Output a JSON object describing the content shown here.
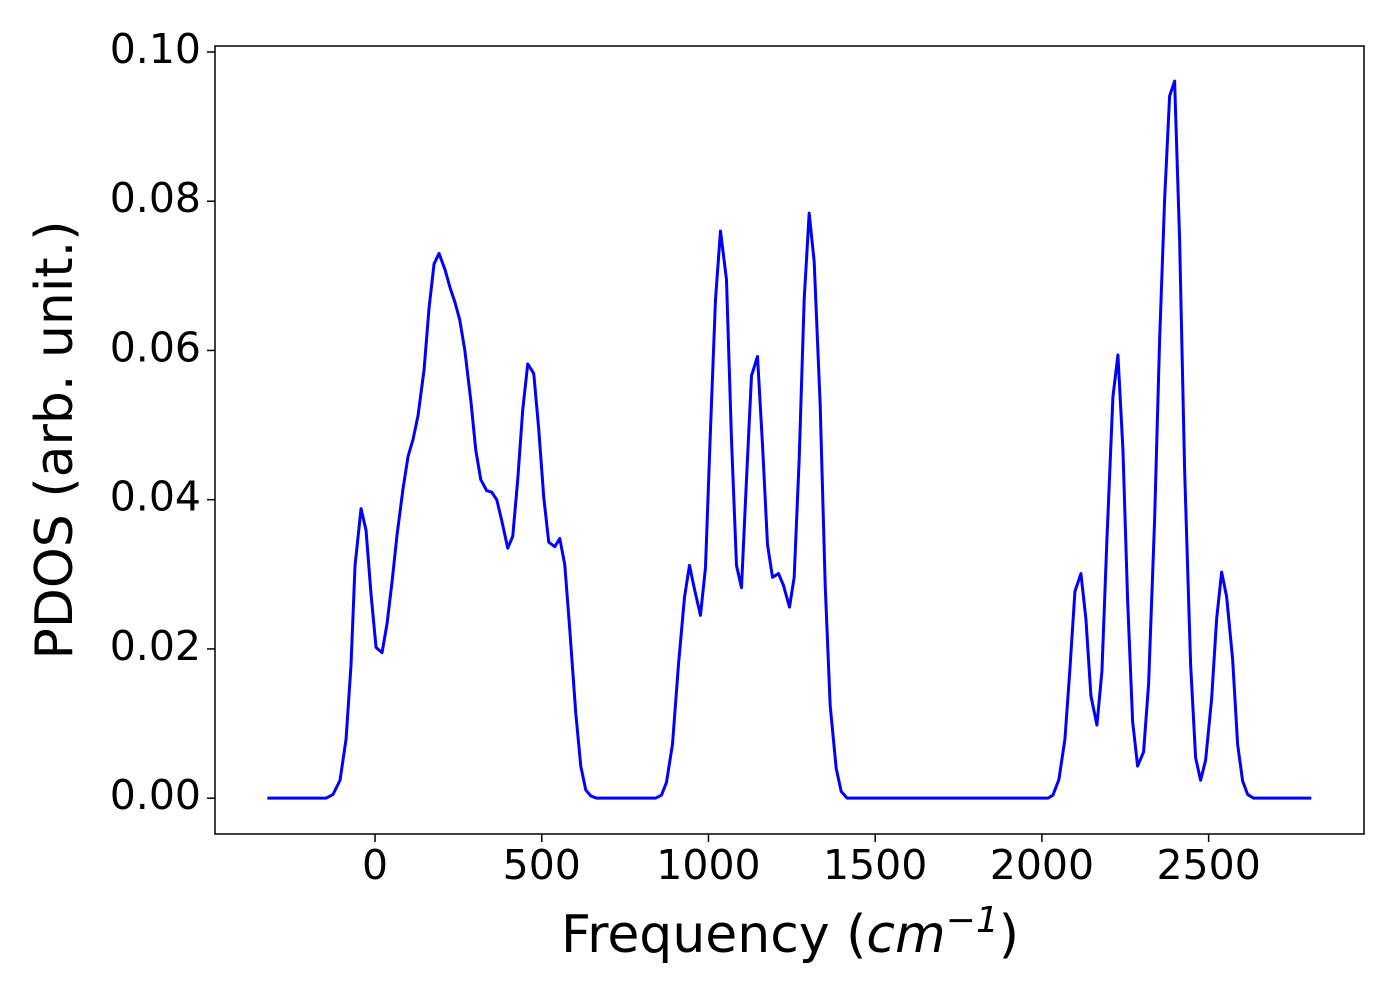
{
  "chart_data": {
    "type": "line",
    "ylabel": "PDOS (arb. unit.)",
    "xlabel": [
      "Frequency (",
      "cm",
      "−1",
      ")"
    ],
    "color": "#0000ff",
    "x": [
      -323,
      -147,
      -126,
      -105,
      -87,
      -72,
      -60,
      -42,
      -27,
      -12,
      3,
      21,
      36,
      51,
      66,
      84,
      99,
      114,
      129,
      147,
      162,
      177,
      192,
      210,
      225,
      240,
      254,
      269,
      287,
      302,
      317,
      335,
      350,
      365,
      380,
      398,
      413,
      428,
      443,
      458,
      476,
      491,
      506,
      521,
      539,
      554,
      569,
      584,
      602,
      617,
      632,
      647,
      665,
      841,
      859,
      874,
      892,
      910,
      928,
      943,
      958,
      976,
      991,
      1006,
      1021,
      1036,
      1054,
      1069,
      1084,
      1099,
      1114,
      1129,
      1147,
      1162,
      1177,
      1192,
      1210,
      1225,
      1243,
      1257,
      1272,
      1287,
      1302,
      1317,
      1335,
      1350,
      1365,
      1383,
      1398,
      1416,
      2018,
      2033,
      2051,
      2069,
      2084,
      2099,
      2117,
      2132,
      2147,
      2165,
      2180,
      2195,
      2213,
      2228,
      2243,
      2257,
      2272,
      2287,
      2305,
      2320,
      2338,
      2353,
      2368,
      2383,
      2398,
      2413,
      2428,
      2446,
      2461,
      2476,
      2491,
      2509,
      2524,
      2539,
      2554,
      2572,
      2587,
      2602,
      2617,
      2635,
      2808
    ],
    "values": [
      0,
      0,
      0.0005,
      0.0024,
      0.0079,
      0.0179,
      0.0312,
      0.0388,
      0.0359,
      0.0273,
      0.0202,
      0.0195,
      0.0234,
      0.029,
      0.0353,
      0.0415,
      0.0458,
      0.0481,
      0.0513,
      0.0574,
      0.0657,
      0.0716,
      0.073,
      0.0708,
      0.0684,
      0.0664,
      0.0641,
      0.0601,
      0.0534,
      0.0467,
      0.0427,
      0.0412,
      0.041,
      0.04,
      0.0372,
      0.0335,
      0.0351,
      0.0427,
      0.0521,
      0.0582,
      0.0569,
      0.0494,
      0.0403,
      0.0343,
      0.0337,
      0.0348,
      0.0313,
      0.0226,
      0.0114,
      0.0043,
      0.0011,
      0.0003,
      0,
      0,
      0.0004,
      0.0021,
      0.0072,
      0.0179,
      0.0269,
      0.0312,
      0.028,
      0.0245,
      0.0309,
      0.0494,
      0.0668,
      0.076,
      0.0695,
      0.0481,
      0.0312,
      0.0282,
      0.0427,
      0.0566,
      0.0592,
      0.0474,
      0.034,
      0.0296,
      0.0301,
      0.0285,
      0.0256,
      0.0296,
      0.0454,
      0.0668,
      0.0784,
      0.0719,
      0.0527,
      0.0286,
      0.0124,
      0.004,
      0.0009,
      0,
      0,
      0.0004,
      0.0025,
      0.0079,
      0.0173,
      0.0277,
      0.0301,
      0.024,
      0.0137,
      0.0098,
      0.017,
      0.0347,
      0.0538,
      0.0594,
      0.0467,
      0.0266,
      0.0103,
      0.0043,
      0.0062,
      0.0153,
      0.0373,
      0.0614,
      0.0802,
      0.0941,
      0.0961,
      0.0748,
      0.044,
      0.0179,
      0.0054,
      0.0024,
      0.0051,
      0.0133,
      0.024,
      0.0303,
      0.027,
      0.0186,
      0.0072,
      0.0023,
      0.0005,
      0,
      0
    ],
    "xlim": [
      -480,
      2966
    ],
    "ylim": [
      -0.0048,
      0.1008
    ],
    "xticks": [
      0,
      500,
      1000,
      1500,
      2000,
      2500
    ],
    "yticks": [
      {
        "value": 0,
        "label": "0.00"
      },
      {
        "value": 0.02,
        "label": "0.02"
      },
      {
        "value": 0.04,
        "label": "0.04"
      },
      {
        "value": 0.06,
        "label": "0.06"
      },
      {
        "value": 0.08,
        "label": "0.08"
      },
      {
        "value": 0.1,
        "label": "0.10"
      }
    ],
    "grid": false
  }
}
